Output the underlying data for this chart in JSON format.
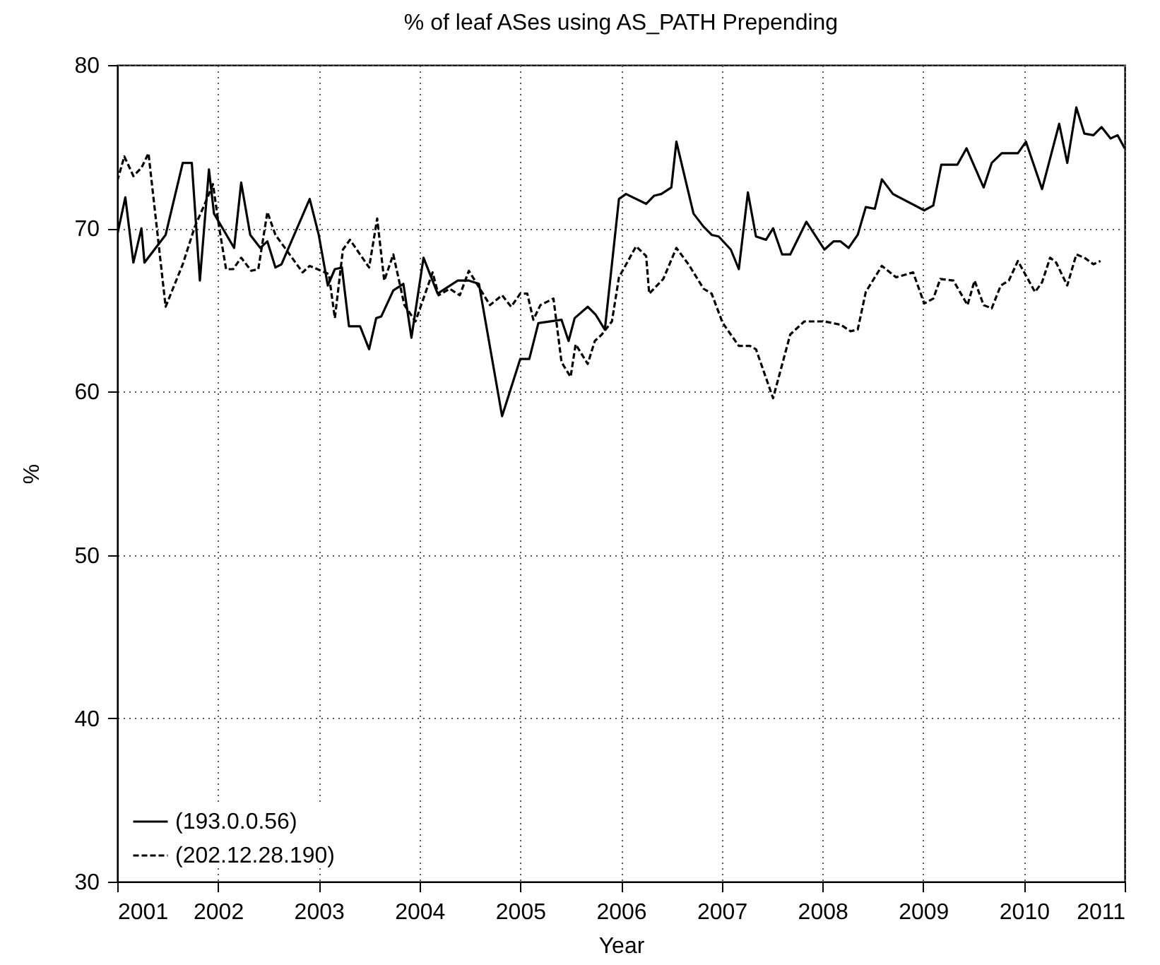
{
  "chart_data": {
    "type": "line",
    "title": "% of leaf ASes using AS_PATH Prepending",
    "xlabel": "Year",
    "ylabel": "%",
    "xlim": [
      2001,
      2011
    ],
    "xticks": [
      2001,
      2002,
      2003,
      2004,
      2005,
      2006,
      2007,
      2008,
      2009,
      2010,
      2011
    ],
    "ylim": [
      30,
      80
    ],
    "yticks": [
      30,
      40,
      50,
      60,
      70,
      80
    ],
    "grid": true,
    "legend": "bottom left",
    "series": [
      {
        "name": "(193.0.0.56)",
        "color": "#000000",
        "line_style": "solid",
        "x": [
          2001.0,
          2001.08,
          2001.16,
          2001.24,
          2001.27,
          2001.48,
          2001.65,
          2001.74,
          2001.82,
          2001.91,
          2001.96,
          2002.16,
          2002.23,
          2002.32,
          2002.42,
          2002.49,
          2002.57,
          2002.63,
          2002.91,
          2003.0,
          2003.09,
          2003.16,
          2003.23,
          2003.3,
          2003.41,
          2003.5,
          2003.57,
          2003.62,
          2003.74,
          2003.84,
          2003.92,
          2004.04,
          2004.18,
          2004.38,
          2004.49,
          2004.59,
          2004.82,
          2005.0,
          2005.09,
          2005.18,
          2005.41,
          2005.48,
          2005.54,
          2005.67,
          2005.75,
          2005.84,
          2005.98,
          2006.05,
          2006.25,
          2006.33,
          2006.4,
          2006.5,
          2006.55,
          2006.72,
          2006.82,
          2006.9,
          2006.97,
          2007.09,
          2007.17,
          2007.26,
          2007.34,
          2007.44,
          2007.51,
          2007.6,
          2007.68,
          2007.84,
          2008.02,
          2008.11,
          2008.18,
          2008.26,
          2008.35,
          2008.43,
          2008.52,
          2008.59,
          2008.7,
          2009.01,
          2009.1,
          2009.18,
          2009.34,
          2009.43,
          2009.6,
          2009.68,
          2009.78,
          2009.94,
          2010.02,
          2010.18,
          2010.35,
          2010.43,
          2010.52,
          2010.6,
          2010.69,
          2010.77,
          2010.86,
          2010.93,
          2011.0
        ],
        "values": [
          69.6,
          71.9,
          67.9,
          70.0,
          67.9,
          69.6,
          74.0,
          74.0,
          66.8,
          73.6,
          70.9,
          68.8,
          72.8,
          69.6,
          68.8,
          69.2,
          67.6,
          67.8,
          71.8,
          69.6,
          66.5,
          67.5,
          67.6,
          64.0,
          64.0,
          62.6,
          64.5,
          64.6,
          66.2,
          66.6,
          63.3,
          68.2,
          66.0,
          66.8,
          66.8,
          66.6,
          58.5,
          62.0,
          62.0,
          64.2,
          64.4,
          63.1,
          64.5,
          65.2,
          64.7,
          63.8,
          71.8,
          72.1,
          71.5,
          72.0,
          72.1,
          72.5,
          75.3,
          70.9,
          70.1,
          69.6,
          69.5,
          68.7,
          67.5,
          72.2,
          69.5,
          69.3,
          70.0,
          68.4,
          68.4,
          70.4,
          68.7,
          69.2,
          69.2,
          68.8,
          69.6,
          71.3,
          71.2,
          73.0,
          72.1,
          71.1,
          71.4,
          73.9,
          73.9,
          74.9,
          72.5,
          74.0,
          74.6,
          74.6,
          75.3,
          72.4,
          76.4,
          74.0,
          77.4,
          75.8,
          75.7,
          76.2,
          75.5,
          75.7,
          74.9
        ]
      },
      {
        "name": "(202.12.28.190)",
        "color": "#000000",
        "line_style": "dashed",
        "x": [
          2001.0,
          2001.07,
          2001.16,
          2001.24,
          2001.31,
          2001.48,
          2001.65,
          2001.77,
          2001.89,
          2001.95,
          2002.01,
          2002.08,
          2002.15,
          2002.23,
          2002.33,
          2002.4,
          2002.49,
          2002.57,
          2002.84,
          2002.91,
          2003.1,
          2003.16,
          2003.24,
          2003.31,
          2003.5,
          2003.58,
          2003.65,
          2003.74,
          2003.85,
          2003.96,
          2004.13,
          2004.19,
          2004.3,
          2004.4,
          2004.49,
          2004.7,
          2004.82,
          2004.91,
          2005.0,
          2005.07,
          2005.13,
          2005.2,
          2005.33,
          2005.41,
          2005.5,
          2005.55,
          2005.67,
          2005.74,
          2005.81,
          2005.91,
          2005.98,
          2006.15,
          2006.25,
          2006.28,
          2006.42,
          2006.55,
          2006.67,
          2006.82,
          2006.9,
          2007.01,
          2007.17,
          2007.28,
          2007.34,
          2007.51,
          2007.68,
          2007.82,
          2008.02,
          2008.18,
          2008.28,
          2008.35,
          2008.43,
          2008.59,
          2008.73,
          2008.9,
          2009.01,
          2009.1,
          2009.17,
          2009.3,
          2009.44,
          2009.51,
          2009.6,
          2009.68,
          2009.77,
          2009.85,
          2009.94,
          2010.11,
          2010.18,
          2010.26,
          2010.32,
          2010.43,
          2010.52,
          2010.6,
          2010.69,
          2010.76
        ],
        "values": [
          72.9,
          74.4,
          73.2,
          73.7,
          74.6,
          65.2,
          67.8,
          70.1,
          71.8,
          72.7,
          70.1,
          67.5,
          67.5,
          68.2,
          67.4,
          67.5,
          71.0,
          69.6,
          67.3,
          67.7,
          67.2,
          64.5,
          68.7,
          69.3,
          67.6,
          70.6,
          66.8,
          68.4,
          65.3,
          64.3,
          67.3,
          65.9,
          66.3,
          65.9,
          67.4,
          65.3,
          65.9,
          65.2,
          66.0,
          66.0,
          64.4,
          65.3,
          65.7,
          61.8,
          60.9,
          62.9,
          61.7,
          63.1,
          63.5,
          64.3,
          67.0,
          68.9,
          68.3,
          66.0,
          66.9,
          68.8,
          67.8,
          66.3,
          66.0,
          64.2,
          62.8,
          62.8,
          62.6,
          59.6,
          63.5,
          64.3,
          64.3,
          64.1,
          63.7,
          63.8,
          66.1,
          67.7,
          67.0,
          67.3,
          65.4,
          65.7,
          66.9,
          66.8,
          65.3,
          66.8,
          65.3,
          65.1,
          66.5,
          66.8,
          68.0,
          66.1,
          66.7,
          68.2,
          67.9,
          66.5,
          68.4,
          68.2,
          67.8,
          68.0
        ]
      }
    ]
  }
}
